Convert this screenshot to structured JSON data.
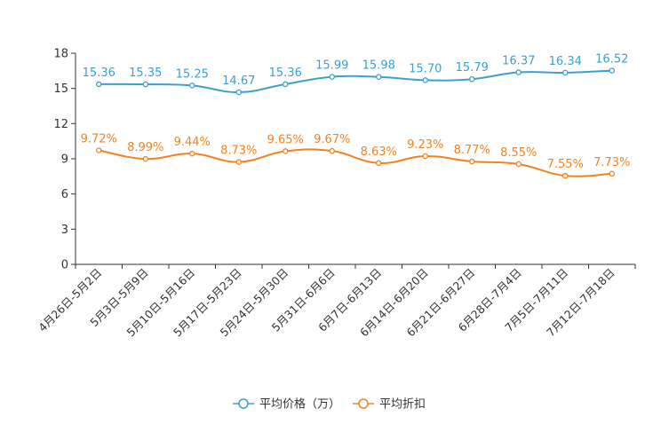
{
  "chart_data": {
    "type": "line",
    "categories": [
      "4月26日-5月2日",
      "5月3日-5月9日",
      "5月10日-5月16日",
      "5月17日-5月23日",
      "5月24日-5月30日",
      "5月31日-6月6日",
      "6月7日-6月13日",
      "6月14日-6月20日",
      "6月21日-6月27日",
      "6月28日-7月4日",
      "7月5日-7月11日",
      "7月12日-7月18日"
    ],
    "ylim": [
      0,
      18
    ],
    "yticks": [
      0,
      3,
      6,
      9,
      12,
      15,
      18
    ],
    "legend_position": "bottom-center",
    "series": [
      {
        "name": "平均价格（万）",
        "color": "#3c9fd0",
        "values": [
          15.36,
          15.35,
          15.25,
          14.67,
          15.36,
          15.99,
          15.98,
          15.7,
          15.79,
          16.37,
          16.34,
          16.52
        ],
        "labels": [
          "15.36",
          "15.35",
          "15.25",
          "14.67",
          "15.36",
          "15.99",
          "15.98",
          "15.70",
          "15.79",
          "16.37",
          "16.34",
          "16.52"
        ]
      },
      {
        "name": "平均折扣",
        "color": "#f5821f",
        "values": [
          9.72,
          8.99,
          9.44,
          8.73,
          9.65,
          9.67,
          8.63,
          9.23,
          8.77,
          8.55,
          7.55,
          7.73
        ],
        "labels": [
          "9.72%",
          "8.99%",
          "9.44%",
          "8.73%",
          "9.65%",
          "9.67%",
          "8.63%",
          "9.23%",
          "8.77%",
          "8.55%",
          "7.55%",
          "7.73%"
        ]
      }
    ]
  }
}
